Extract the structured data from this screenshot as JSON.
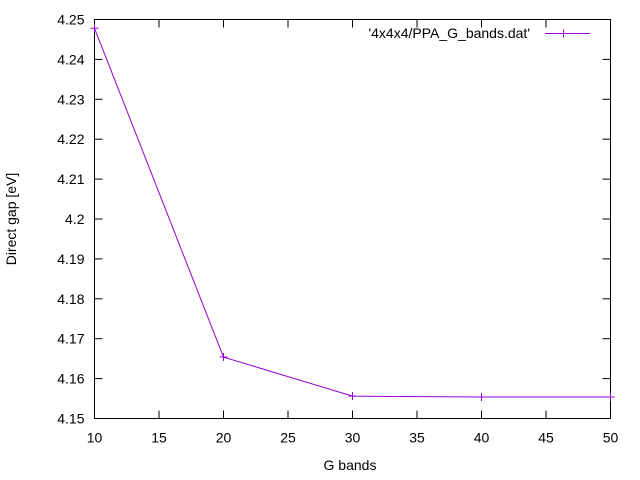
{
  "chart_data": {
    "type": "line",
    "title": "",
    "xlabel": "G bands",
    "ylabel": "Direct gap [eV]",
    "xlim": [
      10,
      50
    ],
    "ylim": [
      4.15,
      4.25
    ],
    "xticks": [
      "10",
      "15",
      "20",
      "25",
      "30",
      "35",
      "40",
      "45",
      "50"
    ],
    "yticks": [
      "4.15",
      "4.16",
      "4.17",
      "4.18",
      "4.19",
      "4.2",
      "4.21",
      "4.22",
      "4.23",
      "4.24",
      "4.25"
    ],
    "grid": false,
    "legend_position": "top-right",
    "series": [
      {
        "name": "'4x4x4/PPA_G_bands.dat'",
        "color": "#9400d3",
        "marker": "plus",
        "x": [
          10,
          20,
          30,
          40,
          50
        ],
        "y": [
          4.2478,
          4.1654,
          4.1556,
          4.1554,
          4.1554
        ]
      }
    ]
  }
}
